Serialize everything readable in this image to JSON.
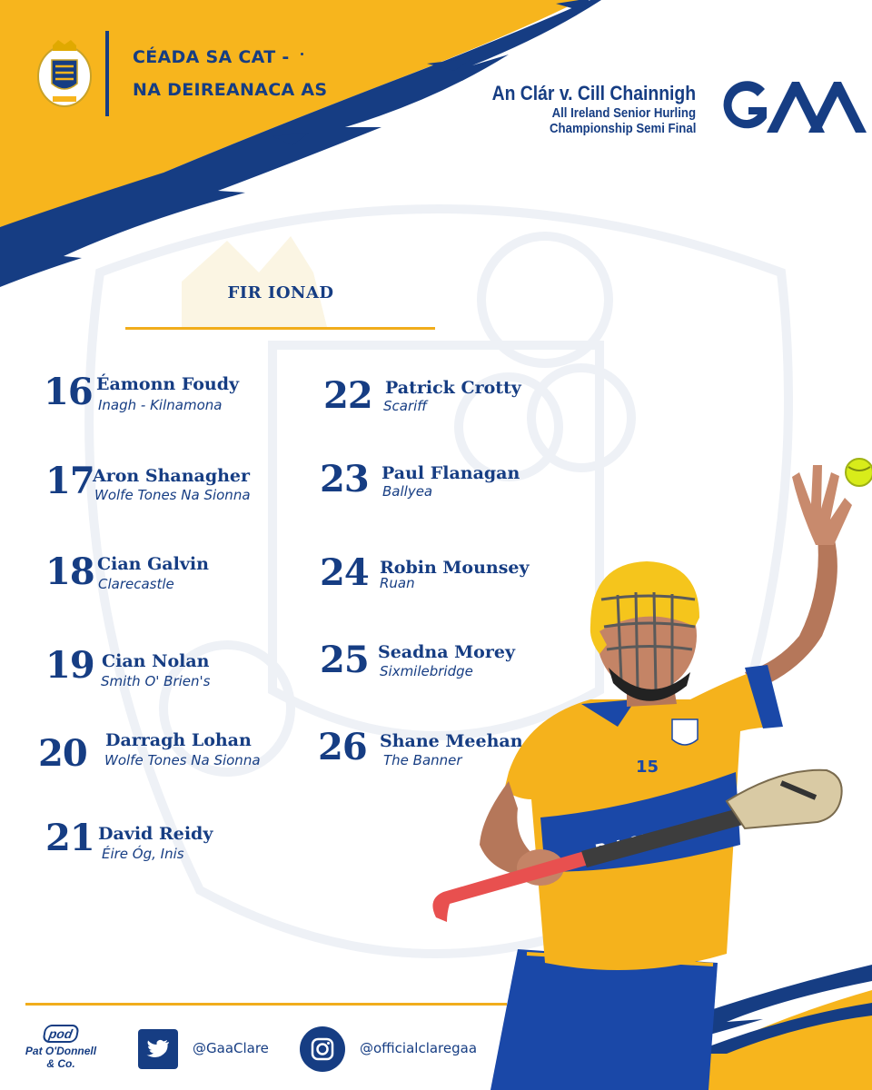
{
  "header": {
    "title_line1": "CÉADA SA CAT -",
    "title_line2": "NA DEIREANACA AS",
    "match": "An Clár  v. Cill Chainnigh",
    "competition_line1": "All Ireland Senior Hurling",
    "competition_line2": "Championship Semi Final",
    "logo_text": "GAA",
    "crest_icon": "clare-crest-icon"
  },
  "section": {
    "heading": "FIR IONAD"
  },
  "players": [
    {
      "number": "16",
      "name": "Éamonn Foudy",
      "club": "Inagh - Kilnamona"
    },
    {
      "number": "17",
      "name": "Aron Shanagher",
      "club": "Wolfe Tones Na Sionna"
    },
    {
      "number": "18",
      "name": "Cian Galvin",
      "club": "Clarecastle"
    },
    {
      "number": "19",
      "name": "Cian Nolan",
      "club": "Smith O' Brien's"
    },
    {
      "number": "20",
      "name": "Darragh Lohan",
      "club": "Wolfe Tones Na Sionna"
    },
    {
      "number": "21",
      "name": "David Reidy",
      "club": "Éire Óg, Inis"
    },
    {
      "number": "22",
      "name": "Patrick Crotty",
      "club": "Scariff"
    },
    {
      "number": "23",
      "name": "Paul Flanagan",
      "club": "Ballyea"
    },
    {
      "number": "24",
      "name": "Robin Mounsey",
      "club": "Ruan"
    },
    {
      "number": "25",
      "name": "Seadna Morey",
      "club": "Sixmilebridge"
    },
    {
      "number": "26",
      "name": "Shane Meehan",
      "club": "The Banner"
    }
  ],
  "photo": {
    "jersey_sponsor": "Pat O'Donnell",
    "jersey_number": "15"
  },
  "footer": {
    "sponsor_mark": "pod",
    "sponsor_name_line1": "Pat O'Donnell",
    "sponsor_name_line2": "& Co.",
    "twitter_handle": "@GaaClare",
    "instagram_handle": "@officialclaregaa",
    "twitter_icon": "twitter-icon",
    "instagram_icon": "instagram-icon"
  },
  "colors": {
    "navy": "#163d83",
    "gold": "#f7b51d",
    "rule_gold": "#f1ad1b"
  }
}
